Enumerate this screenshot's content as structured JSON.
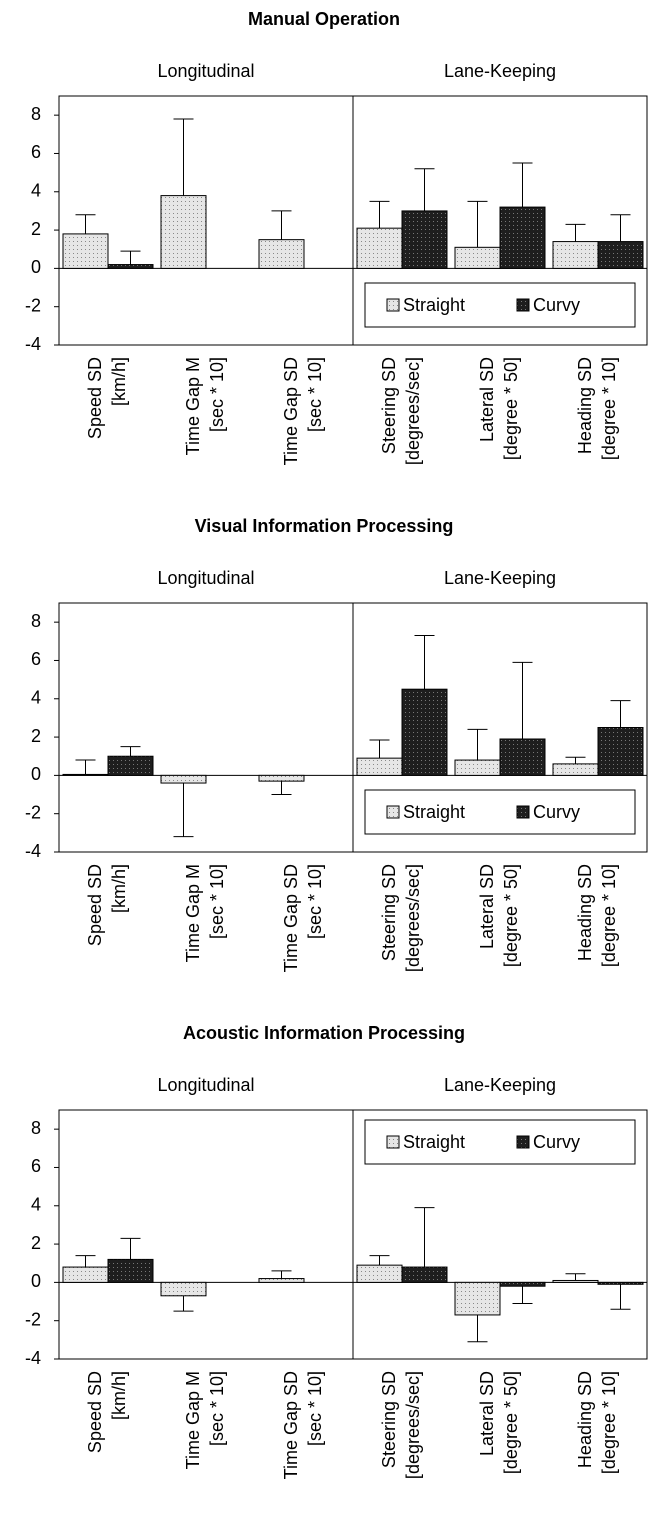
{
  "chart_data": [
    {
      "type": "bar",
      "title": "Manual Operation",
      "groups": [
        "Longitudinal",
        "Lane-Keeping"
      ],
      "categories": [
        [
          "Speed SD",
          "[km/h]"
        ],
        [
          "Time Gap M",
          "[sec * 10]"
        ],
        [
          "Time Gap SD",
          "[sec * 10]"
        ],
        [
          "Steering SD",
          "[degrees/sec]"
        ],
        [
          "Lateral SD",
          "[degree * 50]"
        ],
        [
          "Heading SD",
          "[degree * 10]"
        ]
      ],
      "series": [
        {
          "name": "Straight",
          "color": "#e6e6e6",
          "values": [
            1.8,
            3.8,
            1.5,
            2.1,
            1.1,
            1.4
          ],
          "errors": [
            1.0,
            4.0,
            1.5,
            1.4,
            2.4,
            0.9
          ]
        },
        {
          "name": "Curvy",
          "color": "#1e1e1e",
          "values": [
            0.2,
            null,
            null,
            3.0,
            3.2,
            1.4
          ],
          "errors": [
            0.7,
            null,
            null,
            2.2,
            2.3,
            1.4
          ]
        }
      ],
      "ylim": [
        -4,
        9
      ],
      "yticks": [
        -4,
        -2,
        0,
        2,
        4,
        6,
        8
      ],
      "legend": "lower right"
    },
    {
      "type": "bar",
      "title": "Visual Information Processing",
      "groups": [
        "Longitudinal",
        "Lane-Keeping"
      ],
      "categories": [
        [
          "Speed SD",
          "[km/h]"
        ],
        [
          "Time Gap M",
          "[sec * 10]"
        ],
        [
          "Time Gap SD",
          "[sec * 10]"
        ],
        [
          "Steering SD",
          "[degrees/sec]"
        ],
        [
          "Lateral SD",
          "[degree * 50]"
        ],
        [
          "Heading SD",
          "[degree * 10]"
        ]
      ],
      "series": [
        {
          "name": "Straight",
          "color": "#e6e6e6",
          "values": [
            0.05,
            -0.4,
            -0.3,
            0.9,
            0.8,
            0.6
          ],
          "errors": [
            0.75,
            2.8,
            0.7,
            0.95,
            1.6,
            0.35
          ]
        },
        {
          "name": "Curvy",
          "color": "#1e1e1e",
          "values": [
            1.0,
            null,
            null,
            4.5,
            1.9,
            2.5
          ],
          "errors": [
            0.5,
            null,
            null,
            2.8,
            4.0,
            1.4
          ]
        }
      ],
      "ylim": [
        -4,
        9
      ],
      "yticks": [
        -4,
        -2,
        0,
        2,
        4,
        6,
        8
      ],
      "legend": "lower right"
    },
    {
      "type": "bar",
      "title": "Acoustic Information Processing",
      "groups": [
        "Longitudinal",
        "Lane-Keeping"
      ],
      "categories": [
        [
          "Speed SD",
          "[km/h]"
        ],
        [
          "Time Gap M",
          "[sec * 10]"
        ],
        [
          "Time Gap SD",
          "[sec * 10]"
        ],
        [
          "Steering SD",
          "[degrees/sec]"
        ],
        [
          "Lateral SD",
          "[degree * 50]"
        ],
        [
          "Heading SD",
          "[degree * 10]"
        ]
      ],
      "series": [
        {
          "name": "Straight",
          "color": "#e6e6e6",
          "values": [
            0.8,
            -0.7,
            0.2,
            0.9,
            -1.7,
            0.1
          ],
          "errors": [
            0.6,
            0.8,
            0.4,
            0.5,
            1.4,
            0.35
          ]
        },
        {
          "name": "Curvy",
          "color": "#1e1e1e",
          "values": [
            1.2,
            null,
            null,
            0.8,
            -0.2,
            -0.1
          ],
          "errors": [
            1.1,
            null,
            null,
            3.1,
            0.9,
            1.3
          ]
        }
      ],
      "ylim": [
        -4,
        9
      ],
      "yticks": [
        -4,
        -2,
        0,
        2,
        4,
        6,
        8
      ],
      "legend": "upper right"
    }
  ]
}
